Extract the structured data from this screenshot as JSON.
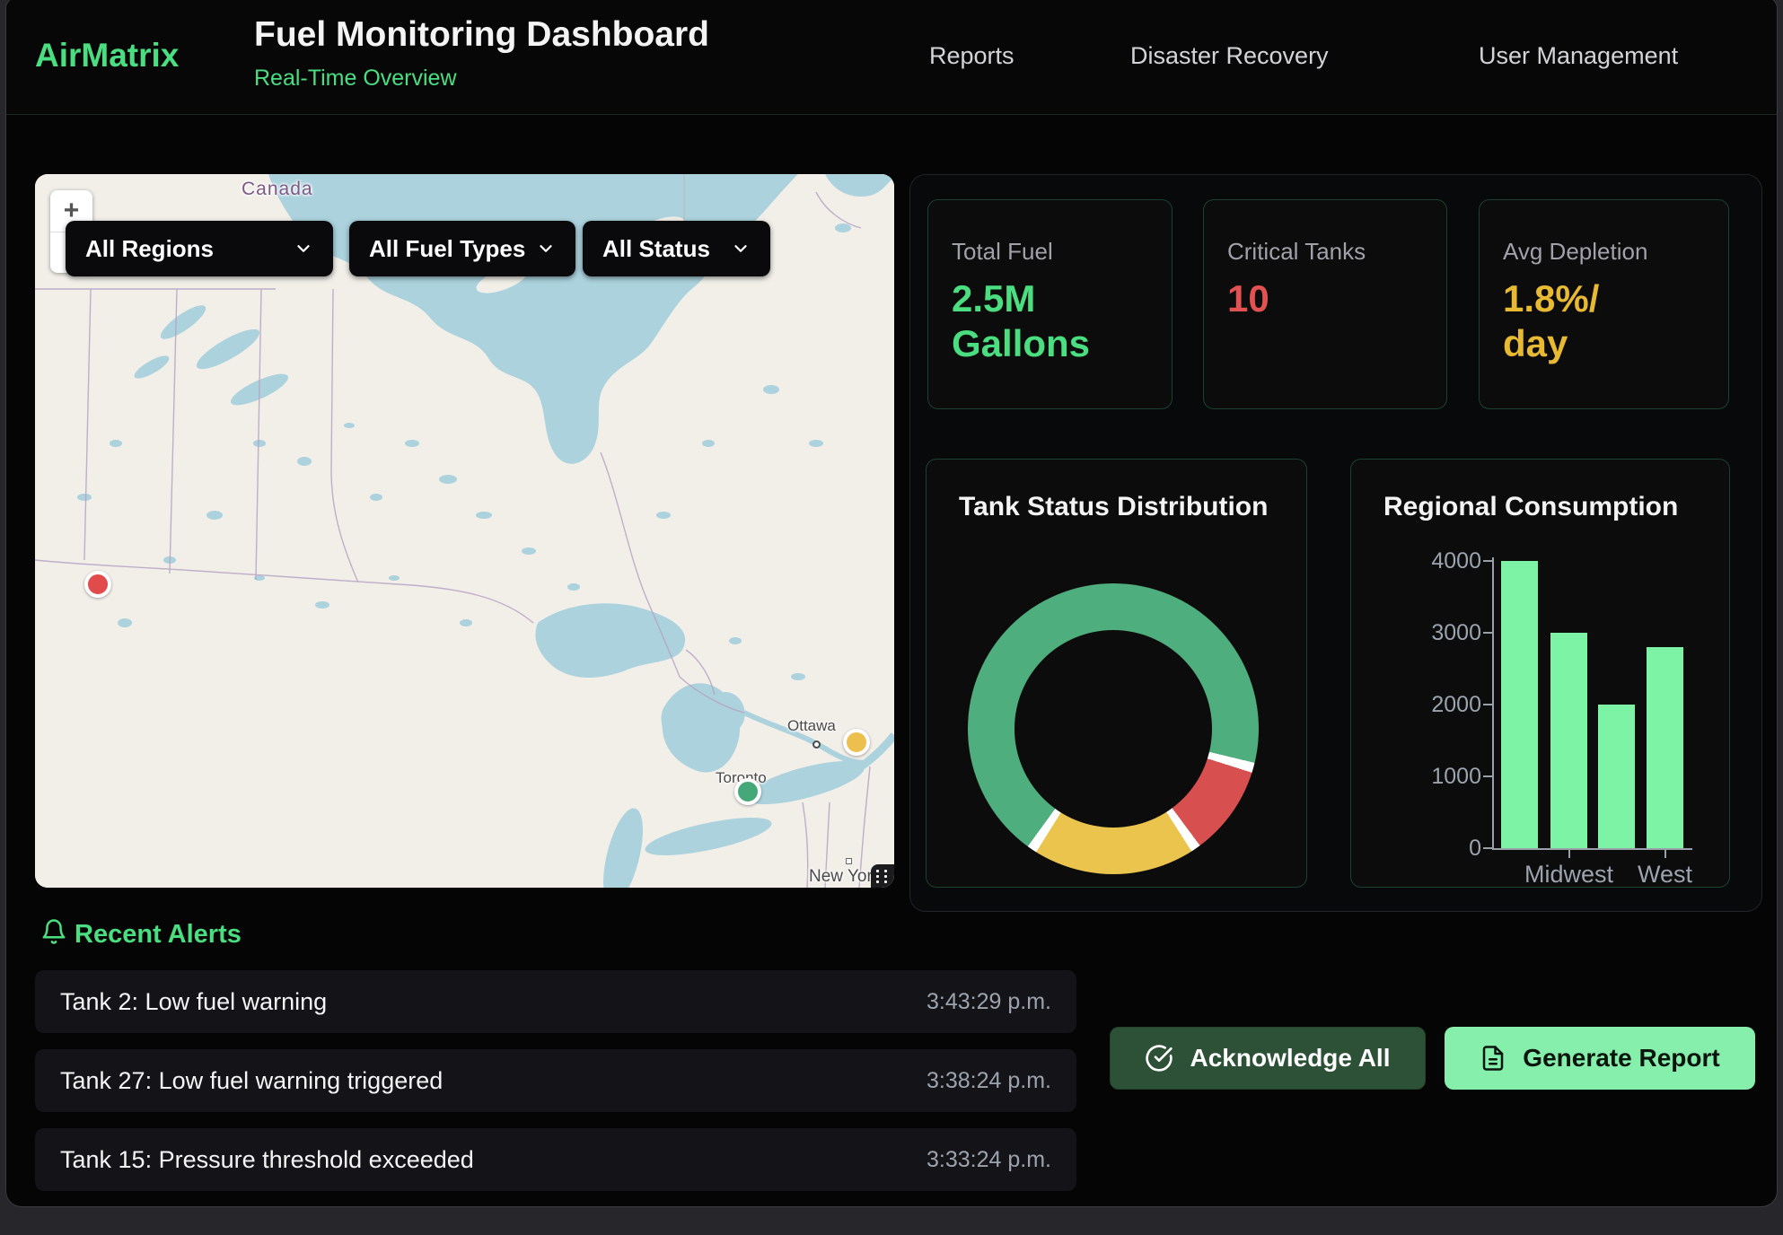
{
  "header": {
    "brand": "AirMatrix",
    "title": "Fuel Monitoring Dashboard",
    "subtitle": "Real-Time Overview",
    "nav": [
      {
        "label": "Reports"
      },
      {
        "label": "Disaster Recovery"
      },
      {
        "label": "User Management"
      }
    ]
  },
  "map": {
    "zoom_in": "+",
    "zoom_out": "−",
    "filters": [
      {
        "label": "All Regions"
      },
      {
        "label": "All Fuel Types"
      },
      {
        "label": "All Status"
      }
    ],
    "place_labels": {
      "country": "Canada",
      "city_ottawa": "Ottawa",
      "city_toronto": "Toronto",
      "city_newyork": "New York"
    },
    "markers": [
      {
        "status": "critical",
        "color": "#e14b4b"
      },
      {
        "status": "warning",
        "color": "#ecbf4e"
      },
      {
        "status": "normal",
        "color": "#45a878"
      }
    ]
  },
  "stats": [
    {
      "label": "Total Fuel",
      "value": "2.5M\nGallons",
      "color": "#4ade80"
    },
    {
      "label": "Critical Tanks",
      "value": "10",
      "color": "#e35252"
    },
    {
      "label": "Avg Depletion",
      "value": "1.8%/\nday",
      "color": "#e8b932"
    }
  ],
  "chart_data": [
    {
      "type": "pie",
      "variant": "donut",
      "title": "Tank Status Distribution",
      "segments": [
        {
          "color_name": "green",
          "color": "#4FAE7D",
          "percent": 69
        },
        {
          "color_name": "red",
          "color": "#D84F4F",
          "percent": 10
        },
        {
          "color_name": "yellow",
          "color": "#EAC44D",
          "percent": 18
        }
      ],
      "rotation_deg": 216,
      "gap_color": "#ffffff",
      "legend": "none"
    },
    {
      "type": "bar",
      "title": "Regional Consumption",
      "categories": [
        "",
        "Midwest",
        "",
        "West"
      ],
      "values": [
        4000,
        3000,
        2000,
        2800
      ],
      "ylim": [
        0,
        4000
      ],
      "yticks": [
        0,
        1000,
        2000,
        3000,
        4000
      ],
      "bar_color": "#7DF4A5",
      "axis_color": "#9ca3af",
      "grid": false,
      "legend": "none"
    }
  ],
  "alerts": {
    "heading": "Recent Alerts",
    "items": [
      {
        "text": "Tank 2: Low fuel warning",
        "time": "3:43:29 p.m."
      },
      {
        "text": "Tank 27: Low fuel warning triggered",
        "time": "3:38:24 p.m."
      },
      {
        "text": "Tank 15: Pressure threshold exceeded",
        "time": "3:33:24 p.m."
      }
    ]
  },
  "actions": {
    "acknowledge": "Acknowledge All",
    "generate_report": "Generate Report"
  }
}
